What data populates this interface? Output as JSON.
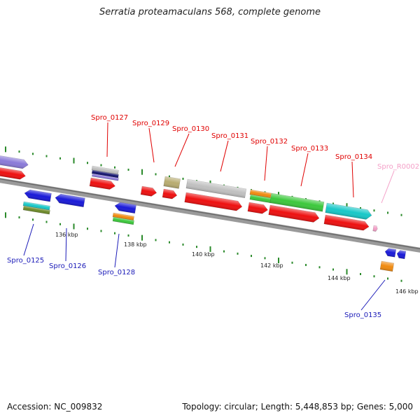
{
  "title": "Serratia proteamaculans 568, complete genome",
  "footer": {
    "accession": "Accession: NC_009832",
    "topology": "Topology: circular; Length: 5,448,853 bp; Genes: 5,000"
  },
  "colors": {
    "backbone": "#8c8c8c",
    "tick": "#2a8a2a",
    "red": "#ee1010",
    "blue": "#1a1ad8",
    "green": "#3cc83c",
    "cyan": "#18c8c8",
    "orange": "#f08a10",
    "gray": "#c0c0c0",
    "purple": "#8a7ad8",
    "khaki": "#b8ac70",
    "navy": "#14146e",
    "olive": "#6e8a2a",
    "pink": "#f4a0c8"
  },
  "scale_labels": [
    "136 kbp",
    "138 kbp",
    "140 kbp",
    "142 kbp",
    "144 kbp",
    "146 kbp"
  ],
  "gene_labels_top": [
    "Spro_0127",
    "Spro_0129",
    "Spro_0130",
    "Spro_0131",
    "Spro_0132",
    "Spro_0133",
    "Spro_0134"
  ],
  "rna_label": "Spro_R0002",
  "gene_labels_bottom": [
    "Spro_0125",
    "Spro_0126",
    "Spro_0128",
    "Spro_0135"
  ]
}
